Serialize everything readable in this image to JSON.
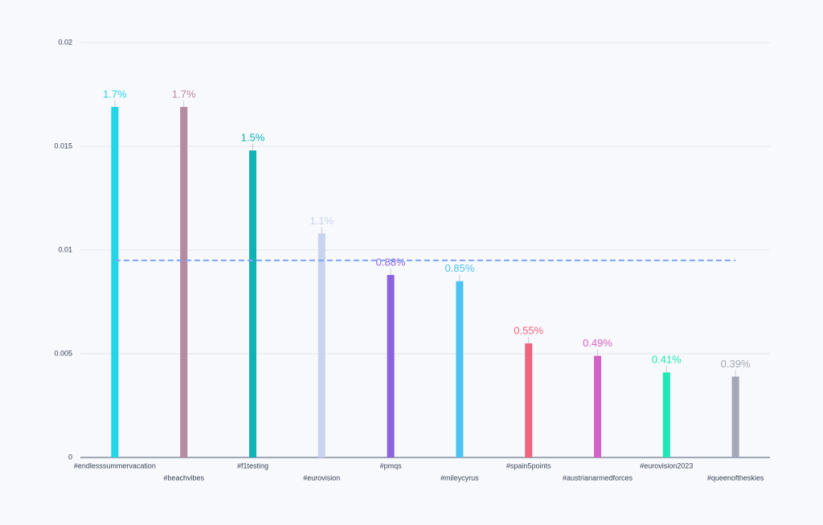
{
  "chart_data": {
    "type": "bar",
    "categories": [
      "#endlesssummervacation",
      "#beachvibes",
      "#f1testing",
      "#eurovision",
      "#pmqs",
      "#mileycyrus",
      "#spain5points",
      "#austrianarmedforces",
      "#eurovision2023",
      "#queenoftheskies"
    ],
    "values": [
      0.0169,
      0.0169,
      0.0148,
      0.0108,
      0.0088,
      0.0085,
      0.0055,
      0.0049,
      0.0041,
      0.0039
    ],
    "value_labels": [
      "1.7%",
      "1.7%",
      "1.5%",
      "1.1%",
      "0.88%",
      "0.85%",
      "0.55%",
      "0.49%",
      "0.41%",
      "0.39%"
    ],
    "colors": [
      "#22d6e8",
      "#b78aa3",
      "#11b2b4",
      "#c7d3ef",
      "#8c62e0",
      "#4cc4f2",
      "#f0647c",
      "#d462c6",
      "#1ee8b4",
      "#a4a8b6"
    ],
    "reference_line": 0.0095,
    "reference_color": "#7ea6f4",
    "ylim": [
      0,
      0.02
    ],
    "yticks": [
      0,
      0.005,
      0.01,
      0.015,
      0.02
    ],
    "grid": true
  }
}
